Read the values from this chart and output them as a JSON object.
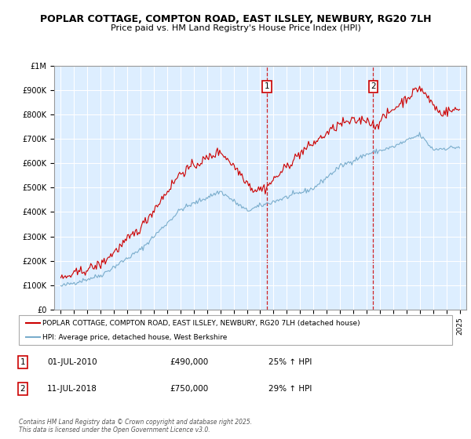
{
  "title_line1": "POPLAR COTTAGE, COMPTON ROAD, EAST ILSLEY, NEWBURY, RG20 7LH",
  "title_line2": "Price paid vs. HM Land Registry's House Price Index (HPI)",
  "ylim": [
    0,
    1000000
  ],
  "yticks": [
    0,
    100000,
    200000,
    300000,
    400000,
    500000,
    600000,
    700000,
    800000,
    900000,
    1000000
  ],
  "ytick_labels": [
    "£0",
    "£100K",
    "£200K",
    "£300K",
    "£400K",
    "£500K",
    "£600K",
    "£700K",
    "£800K",
    "£900K",
    "£1M"
  ],
  "xlim_start": 1994.5,
  "xlim_end": 2025.5,
  "sale1_x": 2010.5,
  "sale1_y": 490000,
  "sale1_label": "1",
  "sale1_date": "01-JUL-2010",
  "sale1_price": "£490,000",
  "sale1_hpi": "25% ↑ HPI",
  "sale2_x": 2018.5,
  "sale2_y": 750000,
  "sale2_label": "2",
  "sale2_date": "11-JUL-2018",
  "sale2_price": "£750,000",
  "sale2_hpi": "29% ↑ HPI",
  "line1_color": "#cc0000",
  "line2_color": "#7aadcc",
  "background_color": "#ddeeff",
  "grid_color": "#ffffff",
  "legend_line1": "POPLAR COTTAGE, COMPTON ROAD, EAST ILSLEY, NEWBURY, RG20 7LH (detached house)",
  "legend_line2": "HPI: Average price, detached house, West Berkshire",
  "footer": "Contains HM Land Registry data © Crown copyright and database right 2025.\nThis data is licensed under the Open Government Licence v3.0."
}
